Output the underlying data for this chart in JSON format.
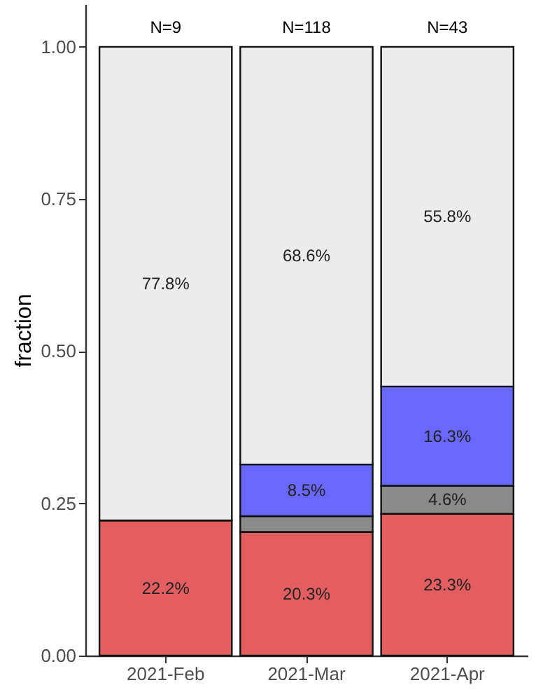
{
  "chart_data": {
    "type": "bar",
    "stacked": true,
    "ylabel": "fraction",
    "categories": [
      "2021-Feb",
      "2021-Mar",
      "2021-Apr"
    ],
    "series": [
      {
        "color": "#e35f5f",
        "values": [
          0.222,
          0.203,
          0.233
        ],
        "value_labels": [
          "22.2%",
          "20.3%",
          "23.3%"
        ]
      },
      {
        "color": "#8a8a8a",
        "values": [
          0,
          0.026,
          0.046
        ],
        "value_labels": [
          null,
          null,
          "4.6%"
        ]
      },
      {
        "color": "#6868ff",
        "values": [
          0,
          0.085,
          0.163
        ],
        "value_labels": [
          null,
          "8.5%",
          "16.3%"
        ]
      },
      {
        "color": "#ececec",
        "values": [
          0.778,
          0.686,
          0.558
        ],
        "value_labels": [
          "77.8%",
          "68.6%",
          "55.8%"
        ]
      }
    ],
    "annotations": [
      {
        "text": "N=9",
        "x": "2021-Feb",
        "y": 1
      },
      {
        "text": "N=118",
        "x": "2021-Mar",
        "y": 1
      },
      {
        "text": "N=43",
        "x": "2021-Apr",
        "y": 1
      }
    ],
    "ylim": [
      0,
      1.07
    ],
    "yticks": [
      {
        "value": 0,
        "label": "0.00"
      },
      {
        "value": 0.25,
        "label": "0.25"
      },
      {
        "value": 0.5,
        "label": "0.50"
      },
      {
        "value": 0.75,
        "label": "0.75"
      },
      {
        "value": 1,
        "label": "1.00"
      }
    ],
    "grid": false
  }
}
